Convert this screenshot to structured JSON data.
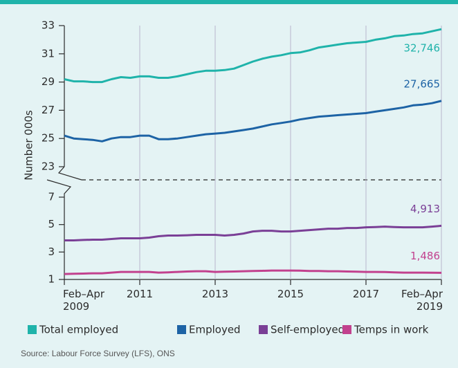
{
  "chart_data": {
    "type": "line",
    "y_label": "Number 000s",
    "source": "Source: Labour Force Survey (LFS), ONS",
    "ylim": [
      1,
      33
    ],
    "y_break": [
      7,
      23
    ],
    "yticks": [
      1,
      3,
      5,
      7,
      23,
      25,
      27,
      29,
      31,
      33
    ],
    "xlim": [
      2009,
      2019
    ],
    "xticks": [
      {
        "value": 2009,
        "label": "Feb–Apr 2009"
      },
      2011,
      2013,
      2015,
      2017,
      {
        "value": 2019,
        "label": "Feb–Apr 2019"
      }
    ],
    "grid": true,
    "x": [
      2009,
      2009.25,
      2009.5,
      2009.75,
      2010,
      2010.25,
      2010.5,
      2010.75,
      2011,
      2011.25,
      2011.5,
      2011.75,
      2012,
      2012.25,
      2012.5,
      2012.75,
      2013,
      2013.25,
      2013.5,
      2013.75,
      2014,
      2014.25,
      2014.5,
      2014.75,
      2015,
      2015.25,
      2015.5,
      2015.75,
      2016,
      2016.25,
      2016.5,
      2016.75,
      2017,
      2017.25,
      2017.5,
      2017.75,
      2018,
      2018.25,
      2018.5,
      2018.75,
      2019
    ],
    "series": [
      {
        "name": "Total employed",
        "color": "#1fb3aa",
        "values": [
          29.2,
          29.05,
          29.05,
          29.0,
          29.0,
          29.2,
          29.35,
          29.3,
          29.4,
          29.4,
          29.3,
          29.3,
          29.4,
          29.55,
          29.7,
          29.8,
          29.8,
          29.85,
          29.95,
          30.2,
          30.45,
          30.65,
          30.8,
          30.9,
          31.05,
          31.1,
          31.25,
          31.45,
          31.55,
          31.65,
          31.75,
          31.8,
          31.85,
          32.0,
          32.1,
          32.25,
          32.3,
          32.4,
          32.45,
          32.6,
          32.746
        ],
        "value_labels": [
          null,
          null,
          null,
          null,
          null,
          null,
          null,
          null,
          null,
          null,
          null,
          null,
          null,
          null,
          null,
          null,
          null,
          null,
          null,
          null,
          null,
          null,
          null,
          null,
          null,
          null,
          null,
          null,
          null,
          null,
          null,
          null,
          null,
          null,
          null,
          null,
          null,
          null,
          null,
          null,
          "32,746"
        ]
      },
      {
        "name": "Employed",
        "color": "#1d63a5",
        "values": [
          25.2,
          25.0,
          24.95,
          24.9,
          24.8,
          25.0,
          25.1,
          25.1,
          25.2,
          25.2,
          24.95,
          24.95,
          25.0,
          25.1,
          25.2,
          25.3,
          25.35,
          25.4,
          25.5,
          25.6,
          25.7,
          25.85,
          26.0,
          26.1,
          26.2,
          26.35,
          26.45,
          26.55,
          26.6,
          26.65,
          26.7,
          26.75,
          26.8,
          26.9,
          27.0,
          27.1,
          27.2,
          27.35,
          27.4,
          27.5,
          27.665
        ],
        "value_labels": [
          null,
          null,
          null,
          null,
          null,
          null,
          null,
          null,
          null,
          null,
          null,
          null,
          null,
          null,
          null,
          null,
          null,
          null,
          null,
          null,
          null,
          null,
          null,
          null,
          null,
          null,
          null,
          null,
          null,
          null,
          null,
          null,
          null,
          null,
          null,
          null,
          null,
          null,
          null,
          null,
          "27,665"
        ]
      },
      {
        "name": "Self-employed",
        "color": "#7a3f96",
        "values": [
          3.85,
          3.85,
          3.88,
          3.9,
          3.9,
          3.95,
          4.0,
          4.0,
          4.0,
          4.05,
          4.15,
          4.2,
          4.2,
          4.22,
          4.25,
          4.25,
          4.25,
          4.2,
          4.25,
          4.35,
          4.5,
          4.55,
          4.55,
          4.5,
          4.5,
          4.55,
          4.6,
          4.65,
          4.7,
          4.7,
          4.75,
          4.75,
          4.8,
          4.82,
          4.85,
          4.82,
          4.8,
          4.8,
          4.8,
          4.85,
          4.913
        ],
        "value_labels": [
          null,
          null,
          null,
          null,
          null,
          null,
          null,
          null,
          null,
          null,
          null,
          null,
          null,
          null,
          null,
          null,
          null,
          null,
          null,
          null,
          null,
          null,
          null,
          null,
          null,
          null,
          null,
          null,
          null,
          null,
          null,
          null,
          null,
          null,
          null,
          null,
          null,
          null,
          null,
          null,
          "4,913"
        ]
      },
      {
        "name": "Temps in work",
        "color": "#c2418e",
        "values": [
          1.4,
          1.42,
          1.43,
          1.45,
          1.45,
          1.5,
          1.55,
          1.55,
          1.55,
          1.55,
          1.5,
          1.52,
          1.55,
          1.58,
          1.6,
          1.6,
          1.55,
          1.57,
          1.58,
          1.6,
          1.62,
          1.63,
          1.65,
          1.65,
          1.65,
          1.64,
          1.62,
          1.62,
          1.6,
          1.6,
          1.58,
          1.57,
          1.55,
          1.55,
          1.54,
          1.52,
          1.5,
          1.5,
          1.5,
          1.49,
          1.486
        ],
        "value_labels": [
          null,
          null,
          null,
          null,
          null,
          null,
          null,
          null,
          null,
          null,
          null,
          null,
          null,
          null,
          null,
          null,
          null,
          null,
          null,
          null,
          null,
          null,
          null,
          null,
          null,
          null,
          null,
          null,
          null,
          null,
          null,
          null,
          null,
          null,
          null,
          null,
          null,
          null,
          null,
          null,
          "1,486"
        ]
      }
    ]
  }
}
